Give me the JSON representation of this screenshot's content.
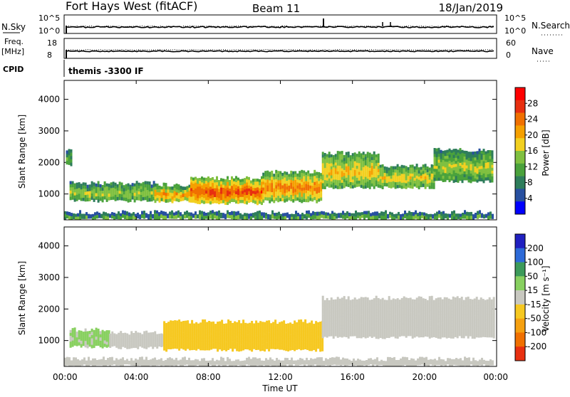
{
  "header": {
    "station": "Fort Hays West (fitACF)",
    "beam": "Beam 11",
    "date": "18/Jan/2019"
  },
  "strips": {
    "sky_label": "N.Sky",
    "search_label": "N.Search",
    "freq_label": "Freq.",
    "freq_unit": "[MHz]",
    "nave_label": "Nave",
    "cpid_label": "CPID",
    "cpid_text": "themis -3300 IF",
    "sky_ticks": [
      "10^5",
      "10^0"
    ],
    "search_ticks": [
      "10^5",
      "10^0"
    ],
    "freq_ticks": [
      "18",
      "8"
    ],
    "nave_ticks": [
      "60",
      "0"
    ]
  },
  "chart_data": [
    {
      "type": "heatmap",
      "quantity": "Power",
      "ylabel": "Slant Range [km]",
      "ylim": [
        180,
        4600
      ],
      "yticks": [
        "4000",
        "3000",
        "2000",
        "1000"
      ],
      "xlim": [
        0,
        24
      ],
      "colorbar": {
        "label": "Power [dB]",
        "ticks": [
          "28",
          "24",
          "20",
          "16",
          "12",
          "8",
          "4"
        ],
        "colors": [
          "#0000ff",
          "#2850a0",
          "#2e7d5b",
          "#4aa23c",
          "#80c040",
          "#f2d020",
          "#f5a000",
          "#f07000",
          "#e83010",
          "#ff0000"
        ]
      },
      "echo_regions": [
        {
          "t0": 0.1,
          "t1": 0.45,
          "r0": 1900,
          "r1": 2450,
          "db": 12
        },
        {
          "t0": 0.3,
          "t1": 5.0,
          "r0": 780,
          "r1": 1350,
          "db": 16
        },
        {
          "t0": 5.0,
          "t1": 7.0,
          "r0": 760,
          "r1": 1300,
          "db": 22
        },
        {
          "t0": 7.0,
          "t1": 11.0,
          "r0": 700,
          "r1": 1500,
          "db": 28
        },
        {
          "t0": 11.0,
          "t1": 14.3,
          "r0": 760,
          "r1": 1700,
          "db": 24
        },
        {
          "t0": 14.3,
          "t1": 17.5,
          "r0": 1200,
          "r1": 2300,
          "db": 20
        },
        {
          "t0": 17.5,
          "t1": 20.5,
          "r0": 1200,
          "r1": 1900,
          "db": 18
        },
        {
          "t0": 20.5,
          "t1": 23.8,
          "r0": 1400,
          "r1": 2400,
          "db": 16
        },
        {
          "t0": 0.0,
          "t1": 23.8,
          "r0": 200,
          "r1": 420,
          "db": 12
        }
      ]
    },
    {
      "type": "heatmap",
      "quantity": "Velocity",
      "ylabel": "Slant Range [km]",
      "ylim": [
        180,
        4600
      ],
      "yticks": [
        "4000",
        "3000",
        "2000",
        "1000"
      ],
      "xlim": [
        0,
        24
      ],
      "xticks": [
        "00:00",
        "04:00",
        "08:00",
        "12:00",
        "16:00",
        "20:00",
        "00:00"
      ],
      "xlabel": "Time UT",
      "colorbar": {
        "label": "Velocity [m s⁻¹]",
        "ticks": [
          "200",
          "100",
          "50",
          "15",
          "-15",
          "-50",
          "-100",
          "-200"
        ],
        "colors": [
          "#2020c0",
          "#2d6ad8",
          "#3c9a5a",
          "#88d060",
          "#c8c8c0",
          "#f6c820",
          "#f5a010",
          "#f07000",
          "#e83010"
        ]
      },
      "echo_regions": [
        {
          "t0": 0.3,
          "t1": 2.5,
          "r0": 800,
          "r1": 1350,
          "v": 30
        },
        {
          "t0": 2.5,
          "t1": 5.5,
          "r0": 780,
          "r1": 1250,
          "v": -10
        },
        {
          "t0": 5.5,
          "t1": 14.3,
          "r0": 700,
          "r1": 1600,
          "v": -40
        },
        {
          "t0": 14.3,
          "t1": 23.8,
          "r0": 1100,
          "r1": 2350,
          "v": -5
        },
        {
          "t0": 0.0,
          "t1": 23.8,
          "r0": 200,
          "r1": 420,
          "v": 10
        }
      ]
    }
  ]
}
